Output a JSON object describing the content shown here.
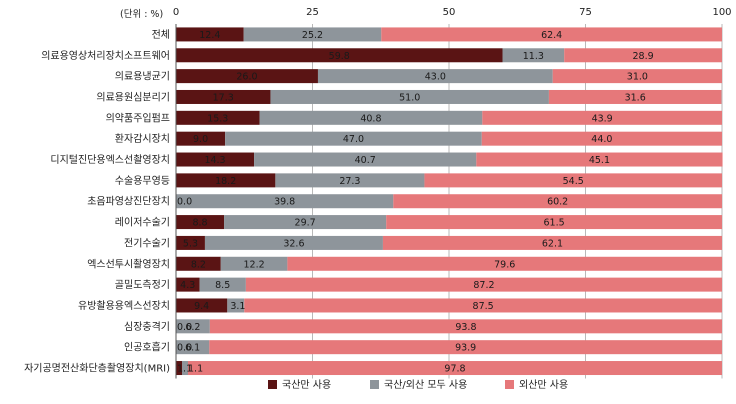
{
  "chart_data": {
    "type": "bar",
    "orientation": "horizontal",
    "stacked": true,
    "unit_label": "(단위 : %)",
    "xlim": [
      0,
      100
    ],
    "x_ticks": [
      0,
      25,
      50,
      75,
      100
    ],
    "grid": true,
    "legend_position": "bottom",
    "categories": [
      "전체",
      "의료용영상처리장치소프트웨어",
      "의료용냉균기",
      "의료용원심분리기",
      "의약품주입펌프",
      "환자감시장치",
      "디지털진단용엑스선촬영장치",
      "수술용무영등",
      "초음파영상진단장치",
      "레이저수술기",
      "전기수술기",
      "엑스선투시촬영장치",
      "골밀도측정기",
      "유방촬용용엑스선장치",
      "심장충격기",
      "인공호흡기",
      "자기공명전산화단층촬영장치(MRI)"
    ],
    "series": [
      {
        "name": "국산만 사용",
        "color": "#5a1414",
        "values": [
          12.4,
          59.8,
          26.0,
          17.3,
          15.3,
          9.0,
          14.3,
          18.2,
          0.0,
          8.8,
          5.3,
          8.2,
          4.3,
          9.4,
          0.0,
          0.0,
          1.1
        ],
        "labels": [
          "12.4",
          "59.8",
          "26.0",
          "17.3",
          "15.3",
          "9.0",
          "14.3",
          "18.2",
          "0.0",
          "8.8",
          "5.3",
          "8.2",
          "4.3",
          "9.4",
          "0.0",
          "0.0",
          "1.1"
        ]
      },
      {
        "name": "국산/외산 모두 사용",
        "color": "#8e959b",
        "values": [
          25.2,
          11.3,
          43.0,
          51.0,
          40.8,
          47.0,
          40.7,
          27.3,
          39.8,
          29.7,
          32.6,
          12.2,
          8.5,
          3.1,
          6.2,
          6.1,
          1.1
        ],
        "labels": [
          "25.2",
          "11.3",
          "43.0",
          "51.0",
          "40.8",
          "47.0",
          "40.7",
          "27.3",
          "39.8",
          "29.7",
          "32.6",
          "12.2",
          "8.5",
          "3.1",
          "6.2",
          "6.1",
          "1.1"
        ]
      },
      {
        "name": "외산만 사용",
        "color": "#e6787a",
        "values": [
          62.4,
          28.9,
          31.0,
          31.6,
          43.9,
          44.0,
          45.1,
          54.5,
          60.2,
          61.5,
          62.1,
          79.6,
          87.2,
          87.5,
          93.8,
          93.9,
          97.8
        ],
        "labels": [
          "62.4",
          "28.9",
          "31.0",
          "31.6",
          "43.9",
          "44.0",
          "45.1",
          "54.5",
          "60.2",
          "61.5",
          "62.1",
          "79.6",
          "87.2",
          "87.5",
          "93.8",
          "93.9",
          "97.8"
        ]
      }
    ]
  }
}
